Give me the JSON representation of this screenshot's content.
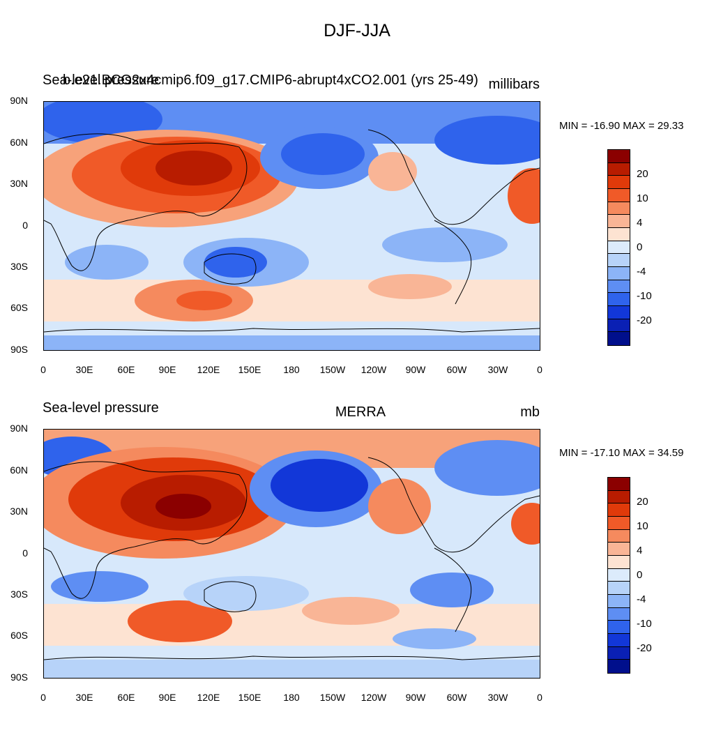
{
  "title": "DJF-JJA",
  "panels": [
    {
      "left_label": "Sea-level pressure",
      "overlay_label": "b.e21.BCO2x4cmip6.f09_g17.CMIP6-abrupt4xCO2.001 (yrs 25-49)",
      "center_label": "",
      "right_label": "millibars",
      "stats": "MIN = -16.90 MAX =  29.33"
    },
    {
      "left_label": "Sea-level pressure",
      "overlay_label": "",
      "center_label": "MERRA",
      "right_label": "mb",
      "stats": "MIN = -17.10 MAX =  34.59"
    }
  ],
  "x_ticks": [
    "0",
    "30E",
    "60E",
    "90E",
    "120E",
    "150E",
    "180",
    "150W",
    "120W",
    "90W",
    "60W",
    "30W",
    "0"
  ],
  "y_ticks": [
    "90N",
    "60N",
    "30N",
    "0",
    "30S",
    "60S",
    "90S"
  ],
  "colorbar": {
    "labels": [
      "20",
      "10",
      "4",
      "0",
      "-4",
      "-10",
      "-20"
    ],
    "colors": [
      "#8b0000",
      "#b81c00",
      "#e03a0a",
      "#f05a28",
      "#f58a5e",
      "#f9b596",
      "#fde3d2",
      "#dcebfb",
      "#b7d3f9",
      "#8cb4f7",
      "#5e8ef3",
      "#2f63ec",
      "#1237d8",
      "#0a20b4",
      "#000f8c"
    ]
  },
  "map_colors": {
    "land_line": "#000000",
    "blue_deep": "#1f4fe0",
    "blue_mid": "#5e8ef3",
    "blue_light": "#b7d3f9",
    "red_deep": "#a8200a",
    "red_mid": "#e85020",
    "red_light": "#f7a27a",
    "peach": "#fbdcc8"
  }
}
